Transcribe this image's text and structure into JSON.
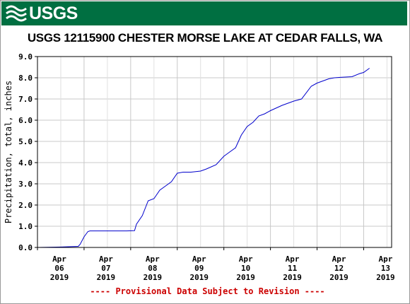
{
  "header": {
    "logo_text": "USGS",
    "logo_icon": "usgs-wave-icon",
    "brand_color": "#006f41"
  },
  "chart_data": {
    "type": "line",
    "title": "USGS 12115900 CHESTER MORSE LAKE AT CEDAR FALLS, WA",
    "ylabel": "Precipitation, total, inches",
    "xlabel": "",
    "ylim": [
      0.0,
      9.0
    ],
    "yticks": [
      "0.0",
      "1.0",
      "2.0",
      "3.0",
      "4.0",
      "5.0",
      "6.0",
      "7.0",
      "8.0",
      "9.0"
    ],
    "xlim": [
      "2019-04-06T00:00",
      "2019-04-13T00:00"
    ],
    "xticks": [
      {
        "month": "Apr",
        "day": "06",
        "year": "2019"
      },
      {
        "month": "Apr",
        "day": "07",
        "year": "2019"
      },
      {
        "month": "Apr",
        "day": "08",
        "year": "2019"
      },
      {
        "month": "Apr",
        "day": "09",
        "year": "2019"
      },
      {
        "month": "Apr",
        "day": "10",
        "year": "2019"
      },
      {
        "month": "Apr",
        "day": "11",
        "year": "2019"
      },
      {
        "month": "Apr",
        "day": "12",
        "year": "2019"
      },
      {
        "month": "Apr",
        "day": "13",
        "year": "2019"
      }
    ],
    "grid": true,
    "line_color": "#0000cc",
    "grid_color": "#c8c8c8",
    "series": [
      {
        "x": [
          "2019-04-06T00:00",
          "2019-04-06T12:00",
          "2019-04-06T21:00",
          "2019-04-06T22:00",
          "2019-04-07T00:00",
          "2019-04-07T02:00",
          "2019-04-07T03:00",
          "2019-04-07T12:00",
          "2019-04-07T22:00",
          "2019-04-08T02:00",
          "2019-04-08T03:00",
          "2019-04-08T06:00",
          "2019-04-08T09:00",
          "2019-04-08T12:00",
          "2019-04-08T15:00",
          "2019-04-08T18:00",
          "2019-04-08T21:00",
          "2019-04-09T00:00",
          "2019-04-09T03:00",
          "2019-04-09T07:00",
          "2019-04-09T12:00",
          "2019-04-09T15:00",
          "2019-04-09T20:00",
          "2019-04-10T00:00",
          "2019-04-10T03:00",
          "2019-04-10T06:00",
          "2019-04-10T09:00",
          "2019-04-10T12:00",
          "2019-04-10T15:00",
          "2019-04-10T18:00",
          "2019-04-10T21:00",
          "2019-04-11T00:00",
          "2019-04-11T06:00",
          "2019-04-11T12:00",
          "2019-04-11T16:00",
          "2019-04-11T21:00",
          "2019-04-12T00:00",
          "2019-04-12T03:00",
          "2019-04-12T06:00",
          "2019-04-12T09:00",
          "2019-04-12T12:00",
          "2019-04-12T18:00",
          "2019-04-12T22:00",
          "2019-04-13T00:00",
          "2019-04-13T03:00"
        ],
        "y": [
          0.0,
          0.02,
          0.05,
          0.15,
          0.5,
          0.75,
          0.78,
          0.78,
          0.78,
          0.79,
          1.1,
          1.5,
          2.2,
          2.3,
          2.7,
          2.9,
          3.1,
          3.5,
          3.55,
          3.55,
          3.6,
          3.7,
          3.9,
          4.3,
          4.5,
          4.7,
          5.3,
          5.7,
          5.9,
          6.2,
          6.3,
          6.45,
          6.7,
          6.9,
          7.0,
          7.6,
          7.75,
          7.85,
          7.95,
          8.0,
          8.02,
          8.05,
          8.2,
          8.25,
          8.45
        ]
      }
    ]
  },
  "footer": {
    "provisional_note": "---- Provisional Data Subject to Revision ----",
    "note_color": "#cc0000"
  }
}
